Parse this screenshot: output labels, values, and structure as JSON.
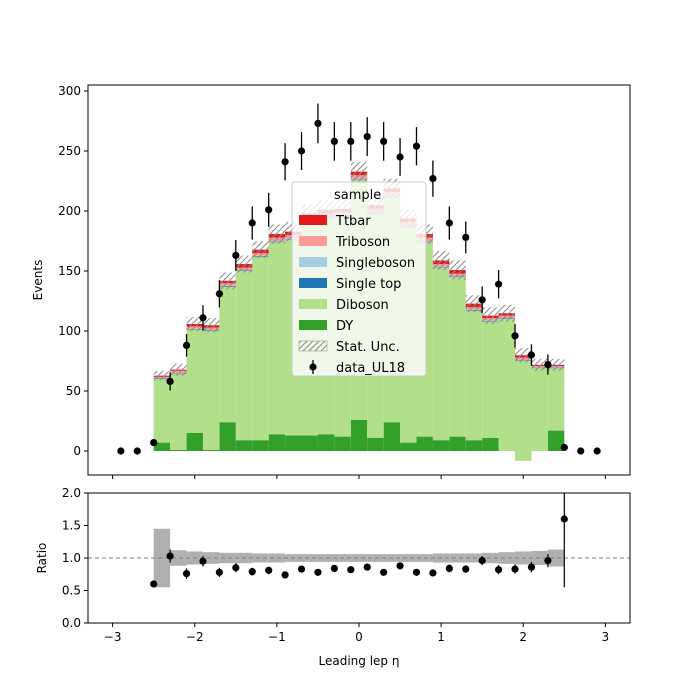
{
  "chart_data": {
    "type": "bar",
    "stacked": true,
    "xlabel": "Leading lep η",
    "ylabel": "Events",
    "ratio_ylabel": "Ratio",
    "xlim": [
      -3.3,
      3.3
    ],
    "ylim": [
      -20,
      305
    ],
    "ratio_ylim": [
      0.0,
      2.0
    ],
    "xticks": [
      "-3",
      "-2",
      "-1",
      "0",
      "1",
      "2",
      "3"
    ],
    "yticks": [
      "0",
      "50",
      "100",
      "150",
      "200",
      "250",
      "300"
    ],
    "ratio_yticks": [
      "0.0",
      "0.5",
      "1.0",
      "1.5",
      "2.0"
    ],
    "legend": {
      "title": "sample",
      "placement": "center",
      "entries": [
        "Ttbar",
        "Triboson",
        "Singleboson",
        "Single top",
        "Diboson",
        "DY",
        "Stat. Unc.",
        "data_UL18"
      ]
    },
    "bin_edges": [
      -2.5,
      -2.3,
      -2.1,
      -1.9,
      -1.7,
      -1.5,
      -1.3,
      -1.1,
      -0.9,
      -0.7,
      -0.5,
      -0.3,
      -0.1,
      0.1,
      0.3,
      0.5,
      0.7,
      0.9,
      1.1,
      1.3,
      1.5,
      1.7,
      1.9,
      2.1,
      2.3,
      2.5
    ],
    "series": [
      {
        "name": "DY",
        "color": "#33a02c",
        "values": [
          7,
          1,
          15,
          1,
          24,
          9,
          9,
          14,
          13,
          13,
          14,
          12,
          26,
          11,
          24,
          7,
          12,
          9,
          12,
          9,
          11,
          0,
          -8,
          0,
          17
        ]
      },
      {
        "name": "Diboson",
        "color": "#b2df8a",
        "values": [
          53,
          63,
          86,
          99,
          113,
          141,
          153,
          160,
          163,
          178,
          180,
          183,
          200,
          187,
          188,
          180,
          162,
          144,
          133,
          108,
          97,
          110,
          83,
          69,
          52
        ]
      },
      {
        "name": "Single top",
        "color": "#1f78b4",
        "values": [
          0.5,
          0.5,
          0.5,
          0.5,
          0.5,
          0.5,
          0.5,
          0.5,
          0.5,
          0.5,
          0.5,
          0.5,
          0.5,
          0.5,
          0.5,
          0.5,
          0.5,
          0.5,
          0.5,
          0.5,
          0.5,
          0.5,
          0.5,
          0.5,
          0.5
        ]
      },
      {
        "name": "Singleboson",
        "color": "#a6cee3",
        "values": [
          0.3,
          0.3,
          0.3,
          0.3,
          0.3,
          0.3,
          0.3,
          0.3,
          0.3,
          0.3,
          0.3,
          0.3,
          0.3,
          0.3,
          0.3,
          0.3,
          0.3,
          0.3,
          0.3,
          0.3,
          0.3,
          0.3,
          0.3,
          0.3,
          0.3
        ]
      },
      {
        "name": "Triboson",
        "color": "#fb9a99",
        "values": [
          1,
          2,
          2,
          2,
          2,
          2,
          2,
          3,
          3,
          3,
          3,
          3,
          3,
          3,
          3,
          3,
          3,
          2,
          2,
          2,
          2,
          2,
          2,
          1,
          1
        ]
      },
      {
        "name": "Ttbar",
        "color": "#e31a1c",
        "values": [
          1,
          1,
          2,
          2,
          2,
          3,
          3,
          3,
          3,
          3,
          3,
          3,
          3,
          3,
          3,
          3,
          3,
          3,
          3,
          3,
          2,
          2,
          2,
          1,
          1
        ]
      }
    ],
    "stat_unc": [
      4,
      5,
      6,
      6,
      7,
      7,
      7,
      8,
      8,
      8,
      8,
      8,
      8,
      8,
      8,
      8,
      8,
      8,
      8,
      7,
      7,
      7,
      6,
      5,
      5
    ],
    "data": {
      "name": "data_UL18",
      "x": [
        -2.9,
        -2.7,
        -2.5,
        -2.3,
        -2.1,
        -1.9,
        -1.7,
        -1.5,
        -1.3,
        -1.1,
        -0.9,
        -0.7,
        -0.5,
        -0.3,
        -0.1,
        0.1,
        0.3,
        0.5,
        0.7,
        0.9,
        1.1,
        1.3,
        1.5,
        1.7,
        1.9,
        2.1,
        2.3,
        2.5,
        2.7,
        2.9
      ],
      "y": [
        0,
        0,
        7,
        58,
        88,
        111,
        131,
        163,
        190,
        201,
        241,
        250,
        273,
        258,
        258,
        262,
        258,
        245,
        254,
        227,
        190,
        178,
        126,
        139,
        96,
        80,
        72,
        3,
        0,
        0
      ],
      "err": [
        0,
        0,
        2.6,
        7.6,
        9.4,
        10.5,
        11.4,
        12.8,
        13.8,
        14.2,
        15.5,
        15.8,
        16.5,
        16.1,
        16.1,
        16.2,
        16.1,
        15.7,
        15.9,
        15.1,
        13.8,
        13.3,
        11.2,
        11.8,
        9.8,
        8.9,
        8.5,
        1.7,
        0,
        0
      ]
    },
    "ratio": {
      "x": [
        -2.5,
        -2.3,
        -2.1,
        -1.9,
        -1.7,
        -1.5,
        -1.3,
        -1.1,
        -0.9,
        -0.7,
        -0.5,
        -0.3,
        -0.1,
        0.1,
        0.3,
        0.5,
        0.7,
        0.9,
        1.1,
        1.3,
        1.5,
        1.7,
        1.9,
        2.1,
        2.3,
        2.5
      ],
      "y": [
        0.6,
        1.03,
        0.76,
        0.95,
        0.78,
        0.85,
        0.79,
        0.81,
        0.74,
        0.83,
        0.78,
        0.84,
        0.82,
        0.86,
        0.78,
        0.88,
        0.78,
        0.77,
        0.84,
        0.83,
        0.96,
        0.82,
        0.83,
        0.86,
        0.96,
        1.6
      ],
      "err": [
        0.05,
        0.1,
        0.08,
        0.08,
        0.07,
        0.07,
        0.06,
        0.06,
        0.05,
        0.05,
        0.05,
        0.05,
        0.05,
        0.05,
        0.05,
        0.05,
        0.05,
        0.05,
        0.06,
        0.06,
        0.07,
        0.07,
        0.07,
        0.08,
        0.1,
        1.05
      ],
      "unc_band": [
        0.45,
        0.12,
        0.1,
        0.09,
        0.08,
        0.08,
        0.07,
        0.07,
        0.06,
        0.06,
        0.06,
        0.06,
        0.06,
        0.06,
        0.06,
        0.06,
        0.06,
        0.07,
        0.07,
        0.07,
        0.08,
        0.09,
        0.1,
        0.11,
        0.13
      ],
      "reference": 1.0
    }
  }
}
